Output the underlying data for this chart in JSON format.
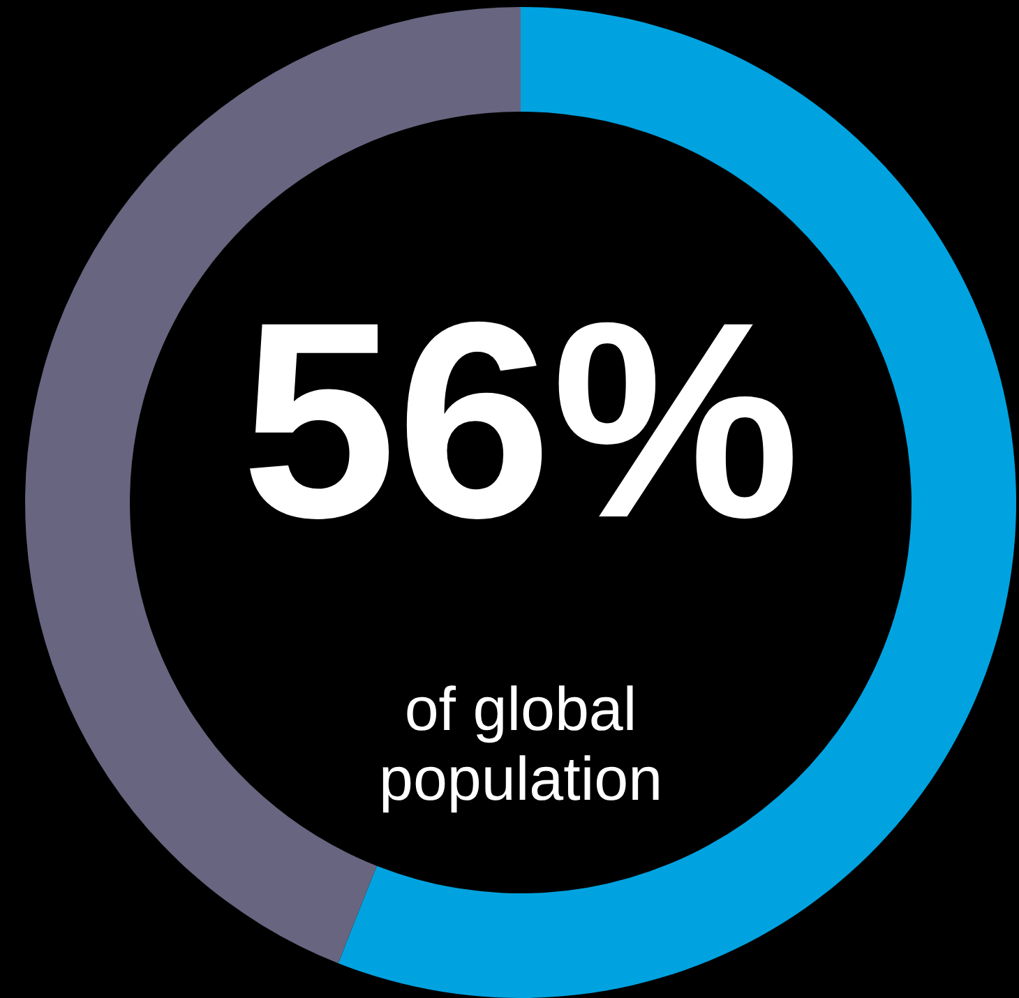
{
  "chart_data": {
    "type": "donut",
    "categories": [
      null,
      null
    ],
    "values": [
      56,
      44
    ],
    "colors": [
      "#00a3e0",
      "#686580"
    ],
    "value_labels": [
      "56%",
      null
    ],
    "annotations": [
      "of global population"
    ]
  }
}
